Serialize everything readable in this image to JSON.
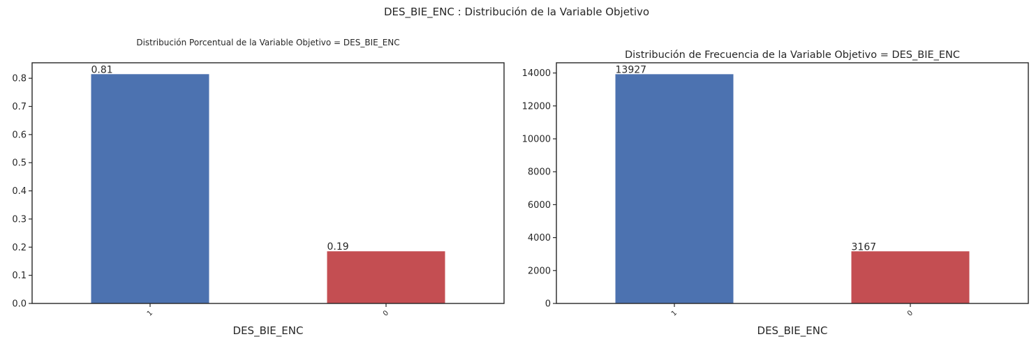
{
  "figure": {
    "suptitle": "DES_BIE_ENC : Distribución de la Variable Objetivo"
  },
  "colors": {
    "bar_1": "#4c72b0",
    "bar_0": "#c44e52",
    "axis": "#262626"
  },
  "chart_data": [
    {
      "type": "bar",
      "title": "Distribución Porcentual de la Variable Objetivo = DES_BIE_ENC",
      "xlabel": "DES_BIE_ENC",
      "ylabel": "",
      "categories": [
        "1",
        "0"
      ],
      "values": [
        0.8146,
        0.1853
      ],
      "data_labels": [
        "0.81",
        "0.19"
      ],
      "ylim": [
        0,
        0.855
      ],
      "yticks": [
        0.0,
        0.1,
        0.2,
        0.3,
        0.4,
        0.5,
        0.6,
        0.7,
        0.8
      ],
      "ytick_labels": [
        "0.0",
        "0.1",
        "0.2",
        "0.3",
        "0.4",
        "0.5",
        "0.6",
        "0.7",
        "0.8"
      ],
      "grid": false,
      "legend": "none"
    },
    {
      "type": "bar",
      "title": "Distribución de Frecuencia de la Variable Objetivo = DES_BIE_ENC",
      "xlabel": "DES_BIE_ENC",
      "ylabel": "",
      "categories": [
        "1",
        "0"
      ],
      "values": [
        13927,
        3167
      ],
      "data_labels": [
        "13927",
        "3167"
      ],
      "ylim": [
        0,
        14620
      ],
      "yticks": [
        0,
        2000,
        4000,
        6000,
        8000,
        10000,
        12000,
        14000
      ],
      "ytick_labels": [
        "0",
        "2000",
        "4000",
        "6000",
        "8000",
        "10000",
        "12000",
        "14000"
      ],
      "grid": false,
      "legend": "none"
    }
  ]
}
